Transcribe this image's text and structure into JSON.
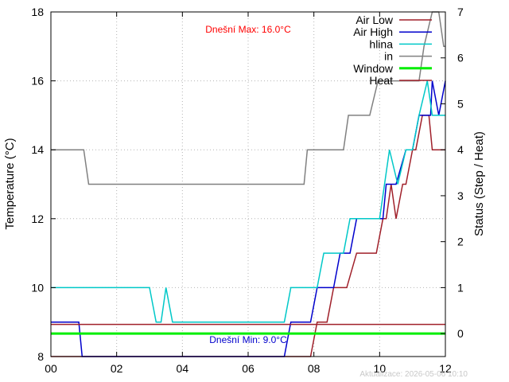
{
  "chart_data": {
    "type": "line",
    "xlabel": "",
    "ylabel": "Temperature (°C)",
    "y2label": "Status (Step / Heat)",
    "xlim": [
      0,
      12
    ],
    "ylim": [
      8,
      18
    ],
    "y2lim": [
      -0.5,
      7
    ],
    "x_ticks": [
      {
        "v": 0,
        "label": "00"
      },
      {
        "v": 2,
        "label": "02"
      },
      {
        "v": 4,
        "label": "04"
      },
      {
        "v": 6,
        "label": "06"
      },
      {
        "v": 8,
        "label": "08"
      },
      {
        "v": 10,
        "label": "10"
      },
      {
        "v": 12,
        "label": "12"
      }
    ],
    "y_ticks": [
      8,
      10,
      12,
      14,
      16,
      18
    ],
    "y2_ticks": [
      0,
      1,
      2,
      3,
      4,
      5,
      6,
      7
    ],
    "grid": true,
    "legend_position": "top-right",
    "annotations": {
      "max_text": "Dnešní Max: 16.0°C",
      "min_text": "Dnešní Min: 9.0°C",
      "updated_text": "Aktualizace: 2026-05-06 10:10"
    },
    "series": [
      {
        "name": "Air Low",
        "axis": "y",
        "color": "#a0202a",
        "width": 1.5,
        "points": [
          [
            0,
            8
          ],
          [
            7.9,
            8
          ],
          [
            8.1,
            9
          ],
          [
            8.4,
            9
          ],
          [
            8.6,
            10
          ],
          [
            9.0,
            10
          ],
          [
            9.3,
            11
          ],
          [
            9.9,
            11
          ],
          [
            10.1,
            12
          ],
          [
            10.2,
            12
          ],
          [
            10.35,
            13
          ],
          [
            10.5,
            12
          ],
          [
            10.7,
            13
          ],
          [
            10.8,
            13
          ],
          [
            11.0,
            14
          ],
          [
            11.1,
            14
          ],
          [
            11.3,
            15
          ],
          [
            11.5,
            15
          ],
          [
            11.6,
            14
          ],
          [
            12.0,
            14
          ]
        ]
      },
      {
        "name": "Air High",
        "axis": "y",
        "color": "#0000cc",
        "width": 1.5,
        "points": [
          [
            0,
            9
          ],
          [
            0.85,
            9
          ],
          [
            0.95,
            8
          ],
          [
            7.1,
            8
          ],
          [
            7.3,
            9
          ],
          [
            7.9,
            9
          ],
          [
            8.1,
            10
          ],
          [
            8.6,
            10
          ],
          [
            8.8,
            11
          ],
          [
            9.1,
            11
          ],
          [
            9.3,
            12
          ],
          [
            10.1,
            12
          ],
          [
            10.2,
            13
          ],
          [
            10.5,
            13
          ],
          [
            10.8,
            14
          ],
          [
            11.0,
            14
          ],
          [
            11.2,
            15
          ],
          [
            11.55,
            15
          ],
          [
            11.6,
            16
          ],
          [
            11.8,
            15
          ],
          [
            12.0,
            16
          ]
        ]
      },
      {
        "name": "hlina",
        "axis": "y",
        "color": "#00c8c8",
        "width": 1.5,
        "points": [
          [
            0,
            10
          ],
          [
            3.0,
            10
          ],
          [
            3.2,
            9
          ],
          [
            3.35,
            9
          ],
          [
            3.5,
            10
          ],
          [
            3.7,
            9
          ],
          [
            7.1,
            9
          ],
          [
            7.3,
            10
          ],
          [
            8.1,
            10
          ],
          [
            8.3,
            11
          ],
          [
            8.9,
            11
          ],
          [
            9.1,
            12
          ],
          [
            9.7,
            12
          ],
          [
            10.0,
            12
          ],
          [
            10.3,
            14
          ],
          [
            10.55,
            13
          ],
          [
            10.8,
            14
          ],
          [
            11.0,
            14
          ],
          [
            11.2,
            15
          ],
          [
            11.45,
            16
          ],
          [
            11.6,
            15
          ],
          [
            12.0,
            15
          ]
        ]
      },
      {
        "name": "in",
        "axis": "y",
        "color": "#808080",
        "width": 1.5,
        "points": [
          [
            0,
            14
          ],
          [
            1.0,
            14
          ],
          [
            1.15,
            13
          ],
          [
            7.7,
            13
          ],
          [
            7.8,
            14
          ],
          [
            8.9,
            14
          ],
          [
            9.05,
            15
          ],
          [
            9.7,
            15
          ],
          [
            9.95,
            16
          ],
          [
            10.5,
            16
          ],
          [
            10.8,
            16
          ],
          [
            11.0,
            16
          ],
          [
            11.2,
            16
          ],
          [
            11.35,
            17
          ],
          [
            11.6,
            18
          ],
          [
            11.8,
            18
          ],
          [
            11.95,
            17
          ],
          [
            12.0,
            17
          ]
        ]
      },
      {
        "name": "Window",
        "axis": "y2",
        "color": "#00ee00",
        "width": 3,
        "points": [
          [
            0,
            0
          ],
          [
            12,
            0
          ]
        ]
      },
      {
        "name": "Heat",
        "axis": "y2",
        "color": "#a0202a",
        "width": 1.5,
        "points": [
          [
            0,
            0.2
          ],
          [
            12,
            0.2
          ]
        ]
      }
    ]
  }
}
